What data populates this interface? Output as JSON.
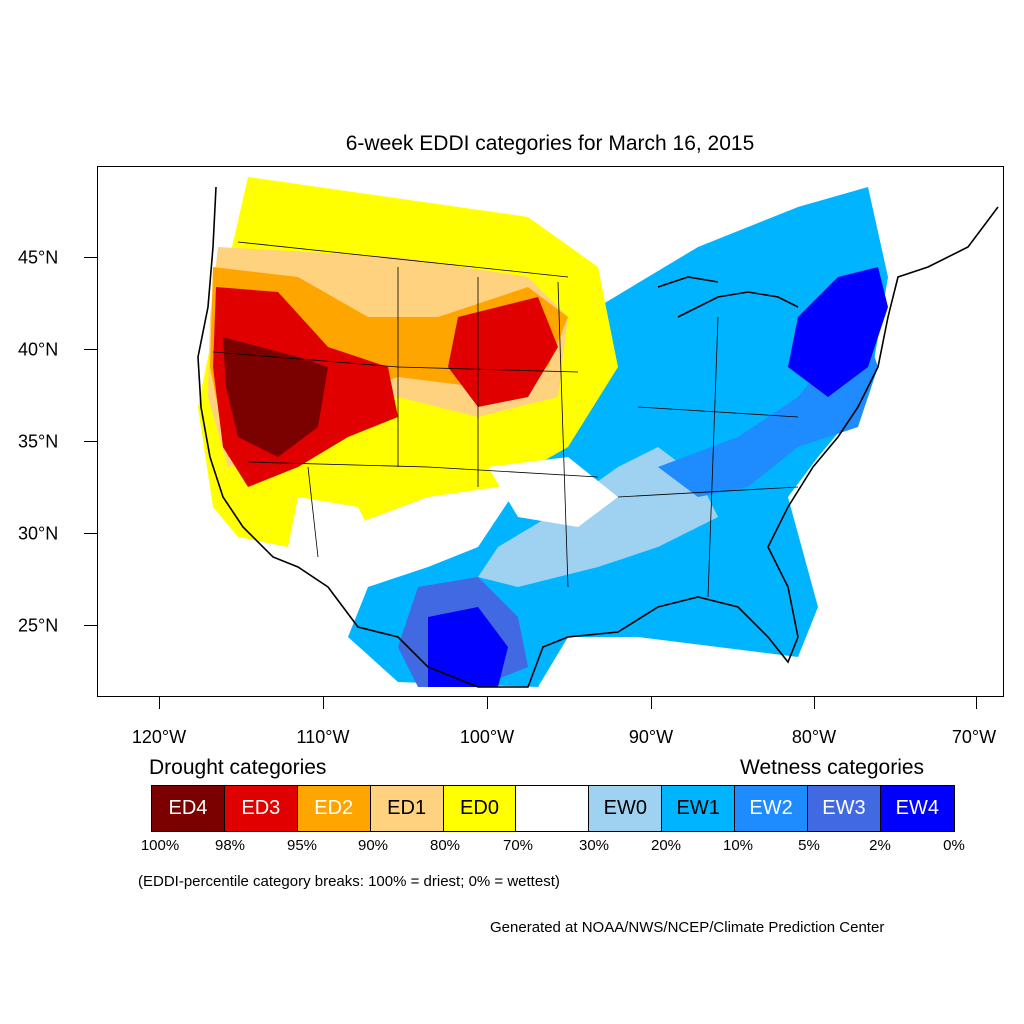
{
  "title": "6-week EDDI categories for March 16, 2015",
  "latitude_labels": [
    "45°N",
    "40°N",
    "35°N",
    "30°N",
    "25°N"
  ],
  "longitude_labels": [
    "120°W",
    "110°W",
    "100°W",
    "90°W",
    "80°W",
    "70°W"
  ],
  "legend": {
    "drought_heading": "Drought categories",
    "wetness_heading": "Wetness categories",
    "categories": [
      {
        "label": "ED4",
        "color": "#7b0000",
        "text_color": "#ffffff"
      },
      {
        "label": "ED3",
        "color": "#e00000",
        "text_color": "#ffffff"
      },
      {
        "label": "ED2",
        "color": "#ffa500",
        "text_color": "#ffffff"
      },
      {
        "label": "ED1",
        "color": "#ffd27f",
        "text_color": "#000000"
      },
      {
        "label": "ED0",
        "color": "#ffff00",
        "text_color": "#000000"
      },
      {
        "label": "",
        "color": "#ffffff",
        "text_color": "#000000"
      },
      {
        "label": "EW0",
        "color": "#9ed2f0",
        "text_color": "#000000"
      },
      {
        "label": "EW1",
        "color": "#00b4ff",
        "text_color": "#000000"
      },
      {
        "label": "EW2",
        "color": "#1e8cff",
        "text_color": "#ffffff"
      },
      {
        "label": "EW3",
        "color": "#4169e1",
        "text_color": "#ffffff"
      },
      {
        "label": "EW4",
        "color": "#0000ff",
        "text_color": "#ffffff"
      }
    ],
    "breaks": [
      "100%",
      "98%",
      "95%",
      "90%",
      "80%",
      "70%",
      "30%",
      "20%",
      "10%",
      "5%",
      "2%",
      "0%"
    ]
  },
  "note": "(EDDI-percentile category breaks: 100% = driest; 0% = wettest)",
  "credit": "Generated at NOAA/NWS/NCEP/Climate Prediction Center"
}
